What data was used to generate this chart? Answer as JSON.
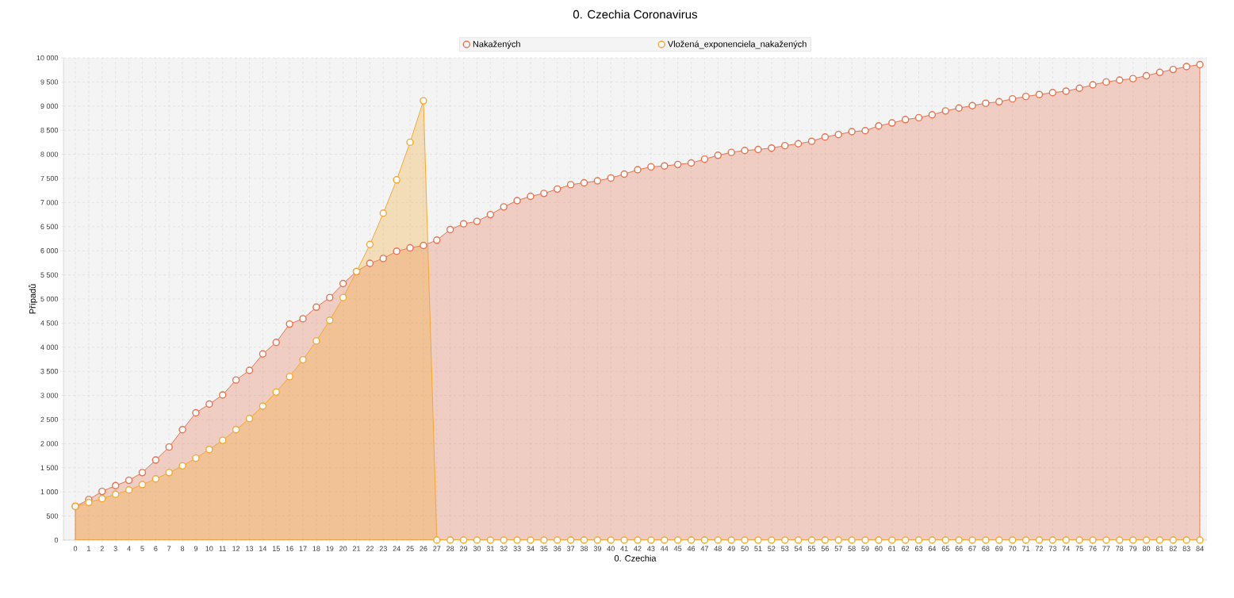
{
  "chart_data": {
    "type": "area",
    "title": "0. Czechia Coronavirus",
    "xlabel": "0. Czechia",
    "ylabel": "Případů",
    "categories": [
      "0",
      "1",
      "2",
      "3",
      "4",
      "5",
      "6",
      "7",
      "8",
      "9",
      "10",
      "11",
      "12",
      "13",
      "14",
      "15",
      "16",
      "17",
      "18",
      "19",
      "20",
      "21",
      "22",
      "23",
      "24",
      "25",
      "26",
      "27",
      "28",
      "29",
      "30",
      "31",
      "32",
      "33",
      "34",
      "35",
      "36",
      "37",
      "38",
      "39",
      "40",
      "41",
      "42",
      "43",
      "44",
      "45",
      "46",
      "47",
      "48",
      "49",
      "50",
      "51",
      "52",
      "53",
      "54",
      "55",
      "56",
      "57",
      "58",
      "59",
      "60",
      "61",
      "62",
      "63",
      "64",
      "65",
      "66",
      "67",
      "68",
      "69",
      "70",
      "71",
      "72",
      "73",
      "74",
      "75",
      "76",
      "77",
      "78",
      "79",
      "80",
      "81",
      "82",
      "83",
      "84"
    ],
    "series": [
      {
        "name": "Nakažených",
        "color": "#e5734f",
        "values": [
          700,
          840,
          1010,
          1130,
          1240,
          1400,
          1660,
          1930,
          2290,
          2640,
          2820,
          3010,
          3320,
          3520,
          3860,
          4100,
          4480,
          4590,
          4830,
          5030,
          5320,
          5570,
          5740,
          5840,
          5990,
          6060,
          6110,
          6220,
          6440,
          6560,
          6610,
          6750,
          6910,
          7040,
          7130,
          7190,
          7280,
          7370,
          7410,
          7450,
          7510,
          7590,
          7680,
          7740,
          7760,
          7790,
          7820,
          7900,
          7980,
          8040,
          8080,
          8100,
          8130,
          8180,
          8220,
          8270,
          8360,
          8410,
          8470,
          8490,
          8590,
          8650,
          8720,
          8760,
          8820,
          8900,
          8960,
          9010,
          9060,
          9090,
          9150,
          9200,
          9240,
          9280,
          9310,
          9370,
          9440,
          9500,
          9540,
          9570,
          9630,
          9700,
          9760,
          9820,
          9860
        ]
      },
      {
        "name": "Vložená_exponenciela_nakažených",
        "color": "#f3a833",
        "values": [
          700,
          780,
          860,
          950,
          1040,
          1150,
          1270,
          1400,
          1540,
          1700,
          1880,
          2070,
          2290,
          2520,
          2780,
          3070,
          3390,
          3740,
          4130,
          4560,
          5030,
          5570,
          6130,
          6780,
          7470,
          8250,
          9110,
          0,
          0,
          0,
          0,
          0,
          0,
          0,
          0,
          0,
          0,
          0,
          0,
          0,
          0,
          0,
          0,
          0,
          0,
          0,
          0,
          0,
          0,
          0,
          0,
          0,
          0,
          0,
          0,
          0,
          0,
          0,
          0,
          0,
          0,
          0,
          0,
          0,
          0,
          0,
          0,
          0,
          0,
          0,
          0,
          0,
          0,
          0,
          0,
          0,
          0,
          0,
          0,
          0,
          0,
          0,
          0,
          0,
          0
        ]
      }
    ],
    "ylim": [
      0,
      10000
    ],
    "yticks": [
      0,
      500,
      {
        "value": 1000,
        "label": "1 000"
      },
      {
        "value": 1500,
        "label": "1 500"
      },
      {
        "value": 2000,
        "label": "2 000"
      },
      {
        "value": 2500,
        "label": "2 500"
      },
      {
        "value": 3000,
        "label": "3 000"
      },
      {
        "value": 3500,
        "label": "3 500"
      },
      {
        "value": 4000,
        "label": "4 000"
      },
      {
        "value": 4500,
        "label": "4 500"
      },
      {
        "value": 5000,
        "label": "5 000"
      },
      {
        "value": 5500,
        "label": "5 500"
      },
      {
        "value": 6000,
        "label": "6 000"
      },
      {
        "value": 6500,
        "label": "6 500"
      },
      {
        "value": 7000,
        "label": "7 000"
      },
      {
        "value": 7500,
        "label": "7 500"
      },
      {
        "value": 8000,
        "label": "8 000"
      },
      {
        "value": 8500,
        "label": "8 500"
      },
      {
        "value": 9000,
        "label": "9 000"
      },
      {
        "value": 9500,
        "label": "9 500"
      },
      {
        "value": 10000,
        "label": "10 000"
      }
    ],
    "grid": true,
    "legend": "top",
    "marker": "circle",
    "line_style": "solid"
  }
}
